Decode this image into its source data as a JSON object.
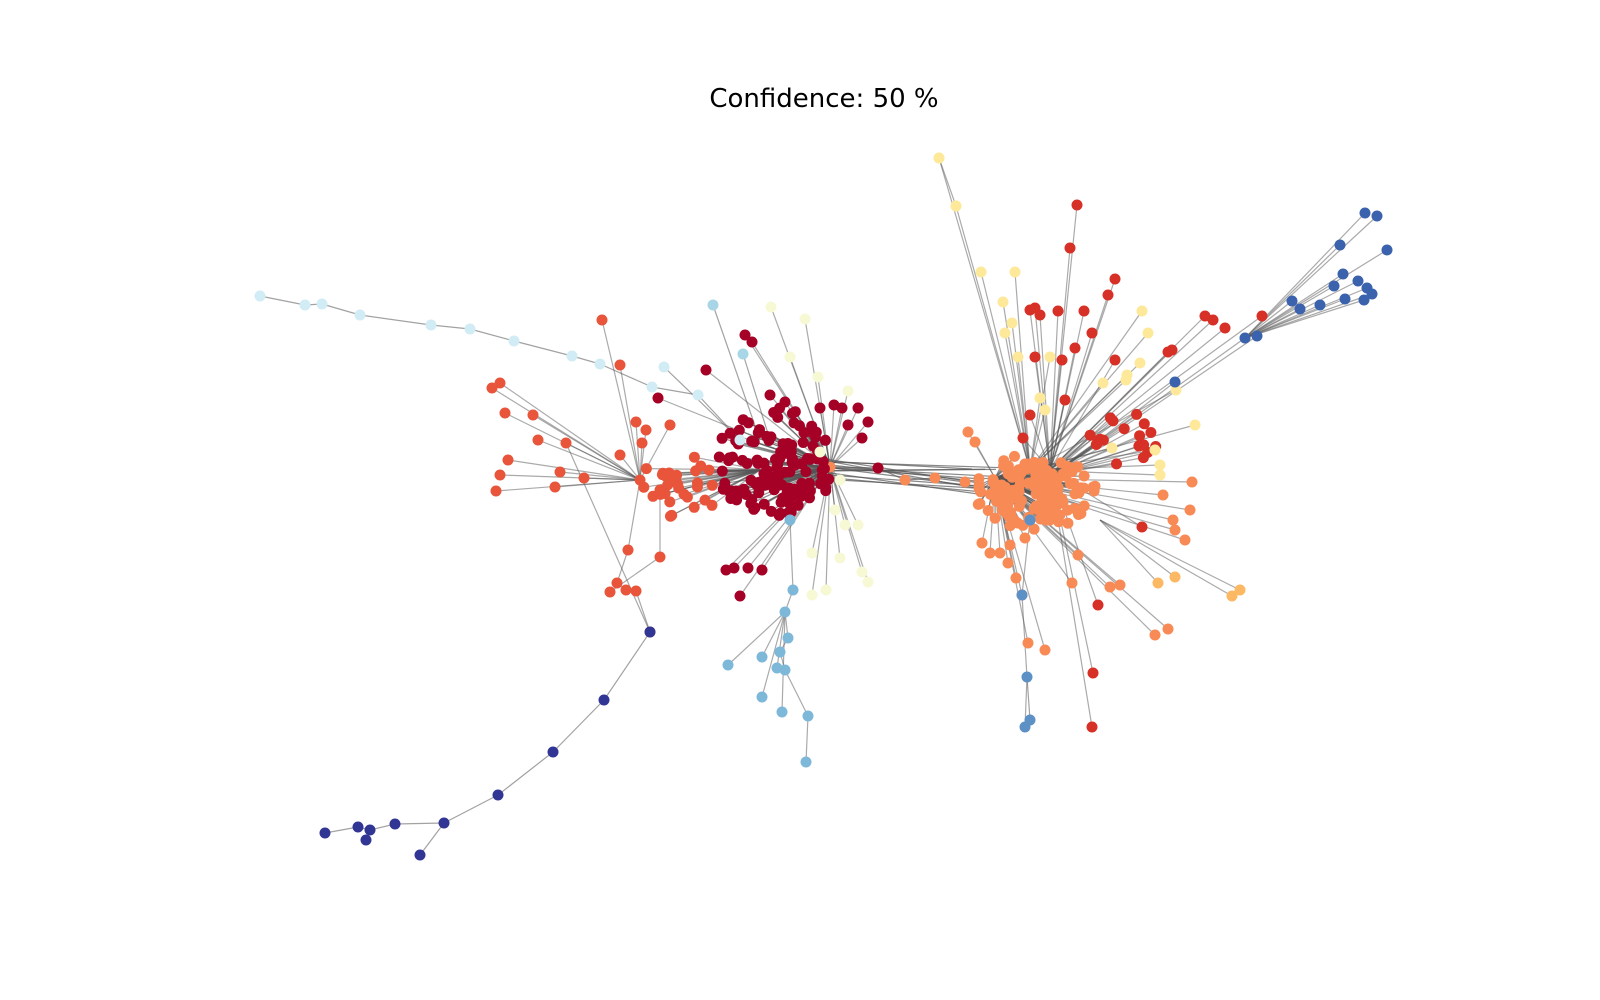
{
  "title": "Confidence: 50 %",
  "colors": {
    "edge": "#555555",
    "dark-red": "#a50026",
    "red": "#d73027",
    "red-orange": "#e8553b",
    "orange": "#f88a55",
    "light-orange": "#fdb863",
    "pale-yellow": "#fee99a",
    "cream": "#f7f9d4",
    "pale-blue": "#d2ecf5",
    "light-blue": "#a9d6e6",
    "sky-blue": "#7eb8d9",
    "steel-blue": "#5d91c6",
    "royal-blue": "#3b62ac",
    "navy": "#313695"
  }
}
